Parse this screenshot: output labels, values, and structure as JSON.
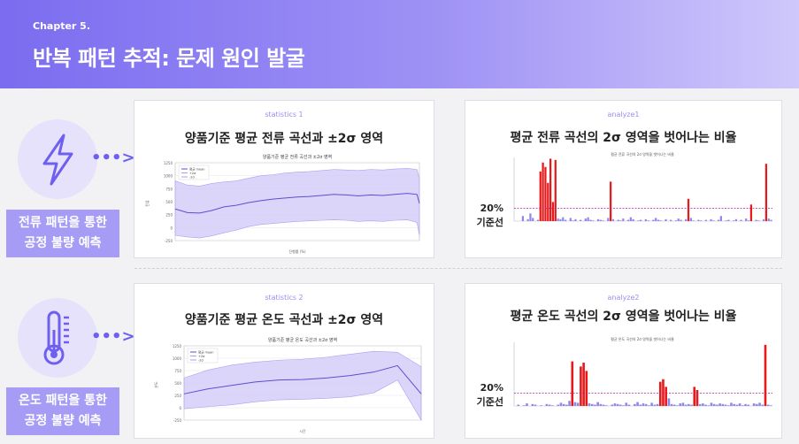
{
  "header": {
    "chapter": "Chapter 5.",
    "title": "반복 패턴 추적: 문제 원인 발굴"
  },
  "rows": [
    {
      "icon": "lightning-bolt-icon",
      "label_line1": "전류 패턴을 통한",
      "label_line2": "공정 불량 예측",
      "stats_card": {
        "tag": "statistics 1",
        "title": "양품기준 평균 전류 곡선과 ±2σ 영역"
      },
      "analyze_card": {
        "tag": "analyze1",
        "title": "평균 전류 곡선의 2σ 영역을 벗어나는 비율",
        "threshold_label": "20%",
        "baseline_label": "기준선"
      }
    },
    {
      "icon": "thermometer-icon",
      "label_line1": "온도 패턴을 통한",
      "label_line2": "공정 불량 예측",
      "stats_card": {
        "tag": "statistics 2",
        "title": "양품기준 평균 온도 곡선과 ±2σ 영역"
      },
      "analyze_card": {
        "tag": "analyze2",
        "title": "평균 온도 곡선의 2σ 영역을 벗어나는 비율",
        "threshold_label": "20%",
        "baseline_label": "기준선"
      }
    }
  ],
  "colors": {
    "accent": "#6e5ff0",
    "band": "#cfc8f7",
    "line": "#5a4fcf",
    "bar_normal": "#8f86ee",
    "bar_over": "#e8191a",
    "threshold": "#b0208f"
  },
  "chart_data": [
    {
      "type": "area",
      "title": "양품기준 평균 전류 곡선과 ±2σ 영역",
      "xlabel": "진행률 (%)",
      "ylabel": "전류",
      "ylim": [
        -250,
        1250
      ],
      "xlim": [
        0,
        100
      ],
      "x": [
        0,
        5,
        10,
        15,
        20,
        25,
        30,
        35,
        40,
        45,
        50,
        55,
        60,
        65,
        70,
        75,
        80,
        85,
        90,
        95,
        99,
        100
      ],
      "series": [
        {
          "name": "평균 mean",
          "values": [
            360,
            290,
            280,
            330,
            400,
            430,
            480,
            520,
            550,
            570,
            590,
            600,
            620,
            640,
            630,
            610,
            630,
            620,
            640,
            660,
            640,
            470
          ]
        },
        {
          "name": "+2σ",
          "values": [
            900,
            820,
            800,
            850,
            880,
            900,
            950,
            1000,
            1020,
            1050,
            1070,
            1080,
            1100,
            1120,
            1110,
            1100,
            1120,
            1110,
            1130,
            1140,
            1120,
            950
          ]
        },
        {
          "name": "-2σ",
          "values": [
            -150,
            -180,
            -200,
            -160,
            -100,
            -50,
            20,
            60,
            80,
            100,
            120,
            130,
            140,
            150,
            140,
            120,
            130,
            120,
            140,
            150,
            100,
            -150
          ]
        }
      ]
    },
    {
      "type": "bar",
      "title": "평균 전류 곡선의 2σ 영역을 벗어나는 비율",
      "threshold": 20,
      "ylim": [
        0,
        100
      ],
      "values": [
        0,
        0,
        0,
        8,
        0,
        3,
        12,
        5,
        0,
        2,
        78,
        92,
        85,
        60,
        98,
        30,
        96,
        4,
        3,
        6,
        2,
        0,
        5,
        1,
        3,
        0,
        2,
        0,
        4,
        6,
        2,
        1,
        0,
        3,
        2,
        1,
        0,
        5,
        62,
        3,
        0,
        2,
        1,
        4,
        0,
        2,
        6,
        3,
        0,
        1,
        2,
        0,
        3,
        1,
        0,
        2,
        5,
        2,
        1,
        0,
        3,
        0,
        2,
        0,
        1,
        4,
        2,
        0,
        3,
        35,
        5,
        1,
        0,
        2,
        1,
        0,
        2,
        0,
        3,
        1,
        0,
        2,
        8,
        0,
        1,
        2,
        0,
        1,
        3,
        0,
        2,
        0,
        4,
        1,
        26,
        0,
        2,
        1,
        0,
        3,
        90,
        4,
        2
      ]
    },
    {
      "type": "area",
      "title": "양품기준 평균 온도 곡선과 ±2σ 영역",
      "xlabel": "시간",
      "ylabel": "온도",
      "ylim": [
        -250,
        1250
      ],
      "xlim": [
        0,
        100
      ],
      "x": [
        0,
        10,
        20,
        30,
        40,
        50,
        60,
        70,
        80,
        90,
        100
      ],
      "series": [
        {
          "name": "평균 mean",
          "values": [
            280,
            380,
            450,
            520,
            560,
            570,
            600,
            650,
            720,
            850,
            280
          ]
        },
        {
          "name": "+2σ",
          "values": [
            600,
            760,
            860,
            920,
            960,
            980,
            1020,
            1080,
            1140,
            1120,
            830
          ]
        },
        {
          "name": "-2σ",
          "values": [
            -20,
            20,
            60,
            120,
            160,
            170,
            190,
            220,
            300,
            560,
            -250
          ]
        }
      ]
    },
    {
      "type": "bar",
      "title": "평균 온도 곡선의 2σ 영역을 벗어나는 비율",
      "threshold": 20,
      "ylim": [
        0,
        100
      ],
      "values": [
        0,
        2,
        0,
        1,
        4,
        0,
        3,
        2,
        0,
        1,
        0,
        3,
        2,
        1,
        0,
        2,
        5,
        3,
        2,
        8,
        70,
        6,
        5,
        62,
        68,
        55,
        4,
        3,
        2,
        6,
        3,
        2,
        1,
        0,
        2,
        4,
        3,
        2,
        1,
        5,
        2,
        0,
        3,
        6,
        2,
        4,
        3,
        1,
        5,
        2,
        3,
        38,
        42,
        30,
        12,
        3,
        2,
        1,
        4,
        5,
        2,
        3,
        2,
        30,
        25,
        3,
        4,
        2,
        1,
        5,
        3,
        2,
        4,
        3,
        2,
        1,
        5,
        3,
        2,
        4,
        1,
        3,
        2,
        0,
        4,
        3,
        5,
        2,
        96,
        2,
        1
      ]
    }
  ]
}
